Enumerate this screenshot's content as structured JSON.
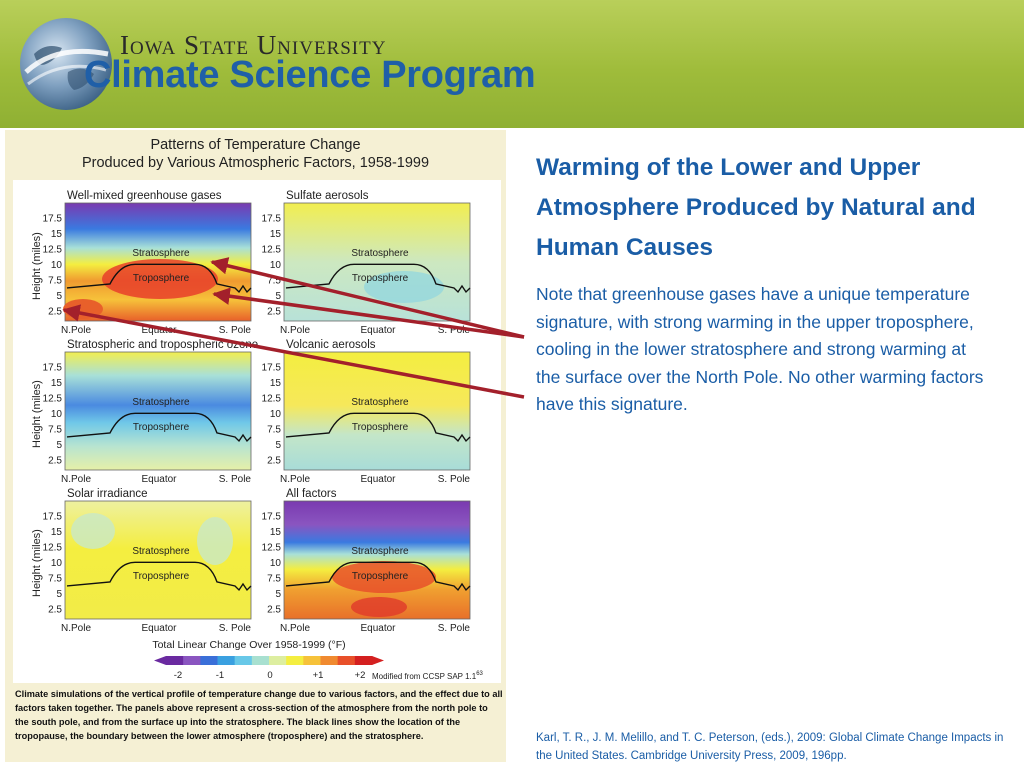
{
  "header": {
    "university": "Iowa State University",
    "program": "Climate Science Program"
  },
  "figure": {
    "title_line1": "Patterns of Temperature Change",
    "title_line2": "Produced by Various Atmospheric Factors, 1958-1999",
    "y_axis_label": "Height (miles)",
    "y_ticks": [
      "17.5",
      "15",
      "12.5",
      "10",
      "7.5",
      "5",
      "2.5"
    ],
    "x_ticks": [
      "N.Pole",
      "Equator",
      "S. Pole"
    ],
    "layer_stratosphere": "Stratosphere",
    "layer_troposphere": "Troposphere",
    "panels": [
      {
        "title": "Well-mixed greenhouse gases"
      },
      {
        "title": "Sulfate aerosols"
      },
      {
        "title": "Stratospheric and tropospheric ozone"
      },
      {
        "title": "Volcanic aerosols"
      },
      {
        "title": "Solar irradiance"
      },
      {
        "title": "All factors"
      }
    ],
    "colorbar_title": "Total Linear Change Over 1958-1999 (°F)",
    "colorbar_ticks": [
      "-2",
      "-1",
      "0",
      "+1",
      "+2"
    ],
    "colorbar_colors": [
      "#6a2aa0",
      "#8a55c0",
      "#3a6fd8",
      "#3aa0e0",
      "#68c8e8",
      "#a8e0d0",
      "#ddeea0",
      "#f4ee40",
      "#f6c23a",
      "#f08a30",
      "#e8502a",
      "#d42020"
    ],
    "modified_note": "Modified from CCSP SAP 1.1",
    "modified_sup": "63",
    "caption": "Climate simulations of the vertical profile of temperature change due to various factors, and the effect due to all factors taken together. The panels above represent a cross-section of the atmosphere from the north pole to the south pole, and from the surface up into the stratosphere. The black lines show the location of the tropopause, the boundary between the lower atmosphere (troposphere) and the stratosphere."
  },
  "slide": {
    "title": "Warming of the Lower and Upper Atmosphere Produced by Natural and Human Causes",
    "body": "Note that greenhouse gases have a unique temperature signature, with strong warming in the upper troposphere, cooling in the lower stratosphere and strong warming at the surface over the North Pole.  No other warming factors have this signature.",
    "reference": "Karl, T. R., J. M. Melillo, and T. C. Peterson, (eds.), 2009:  Global Climate Change Impacts in the United States. Cambridge University Press, 2009, 196pp."
  },
  "colors": {
    "accent_blue": "#1a5da6",
    "header_green": "#9fbc3b",
    "arrow_red": "#a3202b"
  }
}
